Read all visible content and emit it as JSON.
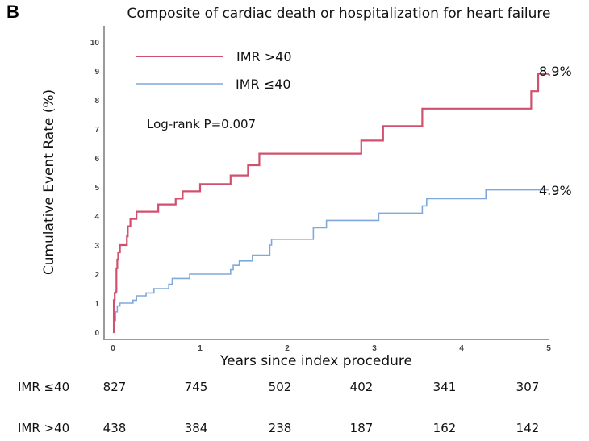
{
  "panel_label": "B",
  "chart_data": {
    "type": "line",
    "subtype": "kaplan-meier-cumulative-incidence",
    "title": "Composite of cardiac death or hospitalization for heart failure",
    "xlabel": "Years since index procedure",
    "ylabel": "Cumulative Event Rate (%)",
    "xlim": [
      0,
      5
    ],
    "ylim": [
      0,
      10
    ],
    "xticks": [
      "0",
      "1",
      "2",
      "3",
      "4",
      "5"
    ],
    "yticks": [
      "0",
      "1",
      "2",
      "3",
      "4",
      "5",
      "6",
      "7",
      "8",
      "9",
      "10"
    ],
    "grid": false,
    "legend_position": "top-left",
    "annotation": "Log-rank P=0.007",
    "series": [
      {
        "name": "IMR >40",
        "color": "#d0506e",
        "end_label": "8.9%",
        "steps": [
          [
            0,
            0
          ],
          [
            0.01,
            1.1
          ],
          [
            0.02,
            1.35
          ],
          [
            0.03,
            1.4
          ],
          [
            0.04,
            2.2
          ],
          [
            0.05,
            2.5
          ],
          [
            0.06,
            2.75
          ],
          [
            0.08,
            3.0
          ],
          [
            0.16,
            3.3
          ],
          [
            0.17,
            3.65
          ],
          [
            0.2,
            3.9
          ],
          [
            0.27,
            4.15
          ],
          [
            0.52,
            4.4
          ],
          [
            0.72,
            4.6
          ],
          [
            0.8,
            4.85
          ],
          [
            1.0,
            5.1
          ],
          [
            1.35,
            5.4
          ],
          [
            1.55,
            5.75
          ],
          [
            1.68,
            6.15
          ],
          [
            2.85,
            6.6
          ],
          [
            3.1,
            7.1
          ],
          [
            3.55,
            7.7
          ],
          [
            4.8,
            8.3
          ],
          [
            4.88,
            8.9
          ],
          [
            5.0,
            8.9
          ]
        ]
      },
      {
        "name": "IMR ≤40",
        "color": "#7fa8dc",
        "end_label": "4.9%",
        "steps": [
          [
            0,
            0
          ],
          [
            0.01,
            0.4
          ],
          [
            0.03,
            0.7
          ],
          [
            0.05,
            0.9
          ],
          [
            0.08,
            1.0
          ],
          [
            0.23,
            1.1
          ],
          [
            0.27,
            1.25
          ],
          [
            0.38,
            1.35
          ],
          [
            0.47,
            1.5
          ],
          [
            0.64,
            1.65
          ],
          [
            0.68,
            1.85
          ],
          [
            0.88,
            2.0
          ],
          [
            1.35,
            2.15
          ],
          [
            1.38,
            2.3
          ],
          [
            1.45,
            2.45
          ],
          [
            1.6,
            2.65
          ],
          [
            1.8,
            3.0
          ],
          [
            1.82,
            3.2
          ],
          [
            2.3,
            3.6
          ],
          [
            2.45,
            3.85
          ],
          [
            3.05,
            4.1
          ],
          [
            3.55,
            4.35
          ],
          [
            3.6,
            4.6
          ],
          [
            4.28,
            4.9
          ],
          [
            5.0,
            4.9
          ]
        ]
      }
    ]
  },
  "risk_table": {
    "rows": [
      {
        "label": "IMR ≤40",
        "values": [
          "827",
          "745",
          "502",
          "402",
          "341",
          "307"
        ]
      },
      {
        "label": "IMR >40",
        "values": [
          "438",
          "384",
          "238",
          "187",
          "162",
          "142"
        ]
      }
    ]
  }
}
